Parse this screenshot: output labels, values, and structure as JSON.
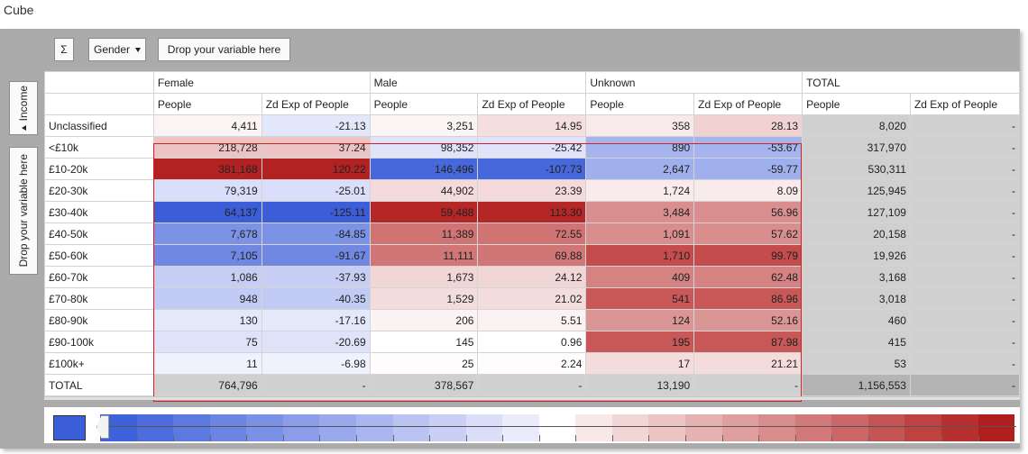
{
  "window": {
    "title": "Cube"
  },
  "toolbar": {
    "sum_icon": "Σ",
    "sum_icon_name": "sigma-icon",
    "column_variable": "Gender",
    "drop_column_placeholder": "Drop your variable here"
  },
  "side": {
    "row_variable": "Income",
    "drop_row_placeholder": "Drop your variable here"
  },
  "table": {
    "groups": [
      "Female",
      "Male",
      "Unknown",
      "TOTAL"
    ],
    "measures": [
      "People",
      "Zd Exp of People"
    ],
    "rows": [
      {
        "label": "Unclassified",
        "cells": [
          "4,411",
          "-21.13",
          "3,251",
          "14.95",
          "358",
          "28.13",
          "8,020",
          "-"
        ]
      },
      {
        "label": "<£10k",
        "cells": [
          "218,728",
          "37.24",
          "98,352",
          "-25.42",
          "890",
          "-53.67",
          "317,970",
          "-"
        ]
      },
      {
        "label": "£10-20k",
        "cells": [
          "381,168",
          "120.22",
          "146,496",
          "-107.73",
          "2,647",
          "-59.77",
          "530,311",
          "-"
        ]
      },
      {
        "label": "£20-30k",
        "cells": [
          "79,319",
          "-25.01",
          "44,902",
          "23.39",
          "1,724",
          "8.09",
          "125,945",
          "-"
        ]
      },
      {
        "label": "£30-40k",
        "cells": [
          "64,137",
          "-125.11",
          "59,488",
          "113.30",
          "3,484",
          "56.96",
          "127,109",
          "-"
        ]
      },
      {
        "label": "£40-50k",
        "cells": [
          "7,678",
          "-84.85",
          "11,389",
          "72.55",
          "1,091",
          "57.62",
          "20,158",
          "-"
        ]
      },
      {
        "label": "£50-60k",
        "cells": [
          "7,105",
          "-91.67",
          "11,111",
          "69.88",
          "1,710",
          "99.79",
          "19,926",
          "-"
        ]
      },
      {
        "label": "£60-70k",
        "cells": [
          "1,086",
          "-37.93",
          "1,673",
          "24.12",
          "409",
          "62.48",
          "3,168",
          "-"
        ]
      },
      {
        "label": "£70-80k",
        "cells": [
          "948",
          "-40.35",
          "1,529",
          "21.02",
          "541",
          "86.96",
          "3,018",
          "-"
        ]
      },
      {
        "label": "£80-90k",
        "cells": [
          "130",
          "-17.16",
          "206",
          "5.51",
          "124",
          "52.16",
          "460",
          "-"
        ]
      },
      {
        "label": "£90-100k",
        "cells": [
          "75",
          "-20.69",
          "145",
          "0.96",
          "195",
          "87.98",
          "415",
          "-"
        ]
      },
      {
        "label": "£100k+",
        "cells": [
          "11",
          "-6.98",
          "25",
          "2.24",
          "17",
          "21.21",
          "53",
          "-"
        ]
      }
    ],
    "total_row": {
      "label": "TOTAL",
      "cells": [
        "764,796",
        "-",
        "378,567",
        "-",
        "13,190",
        "-",
        "1,156,553",
        "-"
      ]
    }
  },
  "colors": {
    "scale_min": "#3b5ed8",
    "scale_max": "#b22222",
    "neutral": "#ffffff",
    "total_cell": "#d0d0d0",
    "grand_total_cell": "#b4b4b4",
    "selection_border": "#d42020"
  },
  "legend": {
    "bands": [
      "#3e62d9",
      "#4d6ddc",
      "#5c79df",
      "#6c85e2",
      "#7b91e5",
      "#8b9de8",
      "#9aa9eb",
      "#aab6ef",
      "#bac3f2",
      "#cad0f5",
      "#dadef8",
      "#eaecfb",
      "#ffffff",
      "#f9e8e8",
      "#f2d6d6",
      "#ecc4c4",
      "#e5b1b1",
      "#df9f9f",
      "#d88c8c",
      "#d27a7a",
      "#cb6767",
      "#c45555",
      "#be4242",
      "#b73030",
      "#b11e1e"
    ]
  },
  "cell_colors": [
    [
      "#fbf4f4",
      "#e2e7fa",
      "#fbf4f4",
      "#f4dede",
      "#f8eaea",
      "#f0d2d2",
      "#d0d0d0",
      "#d0d0d0"
    ],
    [
      "#ecc4c4",
      "#ecc4c4",
      "#dfe4fa",
      "#dfe4fa",
      "#a6b4ee",
      "#a6b4ee",
      "#d0d0d0",
      "#d0d0d0"
    ],
    [
      "#b22222",
      "#b22222",
      "#4768da",
      "#4768da",
      "#a0afed",
      "#a0afed",
      "#d0d0d0",
      "#d0d0d0"
    ],
    [
      "#d9dffa",
      "#d9dffa",
      "#f4dada",
      "#f4dada",
      "#f9ebeb",
      "#f9ebeb",
      "#d0d0d0",
      "#d0d0d0"
    ],
    [
      "#3b5ed8",
      "#3b5ed8",
      "#b52626",
      "#b52626",
      "#d98f8f",
      "#d98f8f",
      "#d0d0d0",
      "#d0d0d0"
    ],
    [
      "#7c92e5",
      "#7c92e5",
      "#cf7373",
      "#cf7373",
      "#d98e8e",
      "#d98e8e",
      "#d0d0d0",
      "#d0d0d0"
    ],
    [
      "#7088e2",
      "#7088e2",
      "#d07676",
      "#d07676",
      "#c44c4c",
      "#c44c4c",
      "#d0d0d0",
      "#d0d0d0"
    ],
    [
      "#c6cef4",
      "#c6cef4",
      "#f1d6d6",
      "#f1d6d6",
      "#d48282",
      "#d48282",
      "#d0d0d0",
      "#d0d0d0"
    ],
    [
      "#c2cbf4",
      "#c2cbf4",
      "#f3dcdc",
      "#f3dcdc",
      "#c95858",
      "#c95858",
      "#d0d0d0",
      "#d0d0d0"
    ],
    [
      "#e3e8fb",
      "#e3e8fb",
      "#fbf3f3",
      "#fbf3f3",
      "#da9595",
      "#da9595",
      "#d0d0d0",
      "#d0d0d0"
    ],
    [
      "#dee3fa",
      "#dee3fa",
      "#ffffff",
      "#ffffff",
      "#c85757",
      "#c85757",
      "#d0d0d0",
      "#d0d0d0"
    ],
    [
      "#eff2fd",
      "#eff2fd",
      "#fefcfc",
      "#fefcfc",
      "#f4dcdc",
      "#f4dcdc",
      "#d0d0d0",
      "#d0d0d0"
    ]
  ]
}
